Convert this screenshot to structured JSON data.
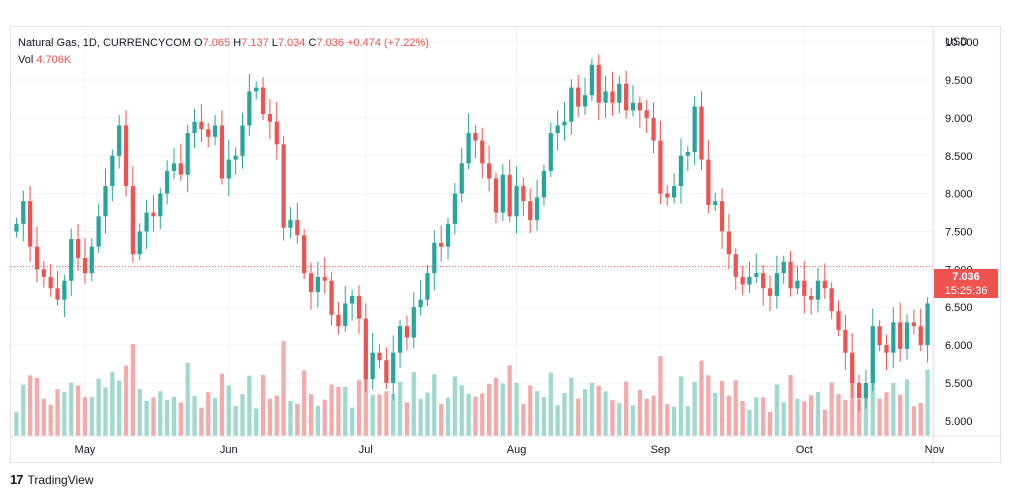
{
  "header": {
    "symbol": "Natural Gas, 1D, CURRENCYCOM",
    "open_label": "O",
    "open": "7.065",
    "high_label": "H",
    "high": "7.137",
    "low_label": "L",
    "low": "7.034",
    "close_label": "C",
    "close": "7.036",
    "change": "+0.474 (+7.22%)",
    "vol_label": "Vol",
    "vol": "4.706K"
  },
  "price_tag": {
    "price": "7.036",
    "countdown": "15:25:36"
  },
  "branding": {
    "logo_mark": "17",
    "name": "TradingView"
  },
  "colors": {
    "up": "#26a69a",
    "down": "#ef5350",
    "up_vol": "#9fd8cf",
    "down_vol": "#f5aaaa",
    "grid": "#f0f3fa",
    "text": "#131722"
  },
  "chart_data": {
    "type": "candlestick",
    "title": "Natural Gas, 1D, CURRENCYCOM",
    "currency": "USD",
    "ylim": [
      4.8,
      10.2
    ],
    "y_ticks": [
      "5.000",
      "5.500",
      "6.000",
      "6.500",
      "7.000",
      "7.500",
      "8.000",
      "8.500",
      "9.000",
      "9.500",
      "10.000"
    ],
    "months": [
      {
        "label": "May",
        "index": 10
      },
      {
        "label": "Jun",
        "index": 31
      },
      {
        "label": "Jul",
        "index": 51
      },
      {
        "label": "Aug",
        "index": 73
      },
      {
        "label": "Sep",
        "index": 94
      },
      {
        "label": "Oct",
        "index": 115
      },
      {
        "label": "Nov",
        "index": 134
      }
    ],
    "last_price": 7.036,
    "closes": [
      7.6,
      7.9,
      7.3,
      7.0,
      6.9,
      6.75,
      6.6,
      6.85,
      7.4,
      7.15,
      6.95,
      7.3,
      7.7,
      8.1,
      8.5,
      8.9,
      8.1,
      7.2,
      7.5,
      7.75,
      7.7,
      8.0,
      8.3,
      8.4,
      8.25,
      8.8,
      8.95,
      8.85,
      8.75,
      8.9,
      8.2,
      8.45,
      8.5,
      8.9,
      9.35,
      9.4,
      9.05,
      8.95,
      8.65,
      7.55,
      7.65,
      7.45,
      6.95,
      6.7,
      6.9,
      6.85,
      6.4,
      6.25,
      6.55,
      6.65,
      6.35,
      5.55,
      5.9,
      5.8,
      5.5,
      5.9,
      6.25,
      6.1,
      6.5,
      6.6,
      6.95,
      7.35,
      7.3,
      7.6,
      8.0,
      8.4,
      8.8,
      8.7,
      8.4,
      8.2,
      7.75,
      8.25,
      7.7,
      8.1,
      7.9,
      7.65,
      7.95,
      8.3,
      8.8,
      8.9,
      8.95,
      9.4,
      9.15,
      9.3,
      9.7,
      9.2,
      9.35,
      9.2,
      9.45,
      9.1,
      9.2,
      9.1,
      9.0,
      8.7,
      8.0,
      7.95,
      8.1,
      8.5,
      8.55,
      9.15,
      8.45,
      7.85,
      7.9,
      7.5,
      7.2,
      6.9,
      6.8,
      6.9,
      6.95,
      6.75,
      6.65,
      6.95,
      7.1,
      6.75,
      6.85,
      6.65,
      6.6,
      6.85,
      6.75,
      6.45,
      6.2,
      5.9,
      5.5,
      5.3,
      5.5,
      6.25,
      6.0,
      5.9,
      6.3,
      5.95,
      6.3,
      6.25,
      6.0,
      6.55
    ],
    "volume": {
      "max_label": "4.706K"
    }
  }
}
